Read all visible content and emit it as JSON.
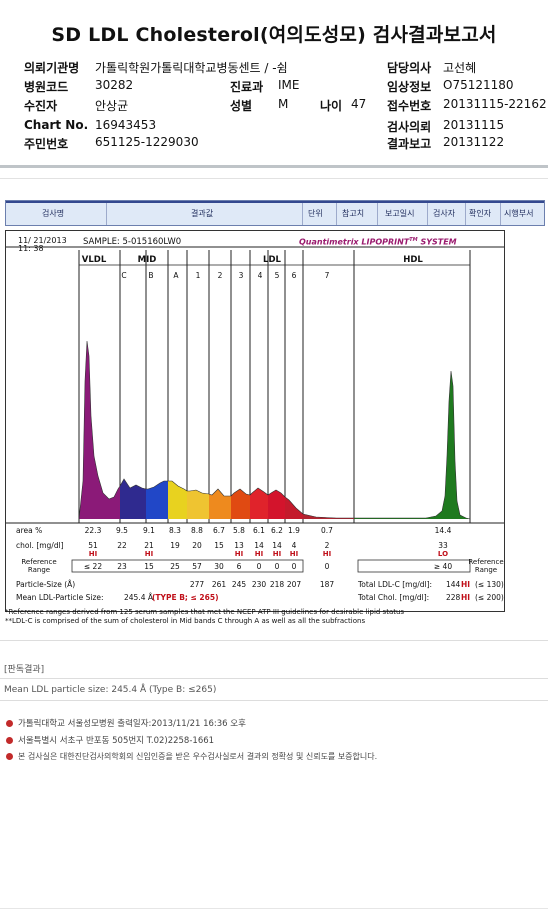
{
  "title": "SD LDL Cholesterol(여의도성모) 검사결과보고서",
  "header_rows": [
    [
      {
        "l": "의뢰기관명",
        "v": "가톨릭학원가톨릭대학교병동센트 / -쉼"
      },
      {
        "l": "담당의사",
        "v": "고선혜"
      }
    ],
    [
      {
        "l": "병원코드",
        "v": "30282"
      },
      {
        "l": "진료과",
        "v": "IME"
      },
      {
        "l": "임상정보",
        "v": "O75121180"
      }
    ],
    [
      {
        "l": "수진자",
        "v": "안상균"
      },
      {
        "l": "성별",
        "v": "M"
      },
      {
        "l": "나이",
        "v": "47"
      },
      {
        "l": "접수번호",
        "v": "20131115-22162"
      }
    ],
    [
      {
        "l": "Chart No.",
        "v": "16943453"
      },
      {
        "l": "검사의뢰",
        "v": "20131115"
      }
    ],
    [
      {
        "l": "주민번호",
        "v": "651125-1229030"
      },
      {
        "l": "결과보고",
        "v": "20131122"
      }
    ]
  ],
  "table_header": [
    "검사명",
    "결과값",
    "단위",
    "참고치",
    "보고일시",
    "검사자",
    "확인자",
    "시행부서"
  ],
  "chart": {
    "date": "11/ 21/2013",
    "time": "11: 38",
    "sample": "SAMPLE:   5-015160LW0",
    "brand": "Quantimetrix LIPOPRINT",
    "brand_tm": "TM",
    "brand_suffix": " SYSTEM",
    "group_labels": {
      "vldl": "VLDL",
      "mid": "MID",
      "ldl": "LDL",
      "hdl": "HDL"
    },
    "band_labels": [
      "C",
      "B",
      "A",
      "1",
      "2",
      "3",
      "4",
      "5",
      "6",
      "7"
    ],
    "row_labels": {
      "area": "area %",
      "chol": "chol. [mg/dl]",
      "ref": "Reference Range",
      "size": "Particle-Size (Å)",
      "mean": "Mean LDL-Particle Size:",
      "ref_right": "Reference Range"
    },
    "columns": [
      "VLDL",
      "C",
      "B",
      "A",
      "1",
      "2",
      "3",
      "4",
      "5",
      "6",
      "7",
      "HDL"
    ],
    "area": [
      22.3,
      9.5,
      9.1,
      8.3,
      8.8,
      6.7,
      5.8,
      6.1,
      6.2,
      1.9,
      0.7,
      14.4
    ],
    "chol": [
      51,
      22,
      21,
      19,
      20,
      15,
      13,
      14,
      14,
      4,
      2,
      33
    ],
    "chol_flags": [
      "HI",
      "",
      "HI",
      "",
      "",
      "",
      "HI",
      "HI",
      "HI",
      "HI",
      "HI",
      "LO"
    ],
    "ref": [
      "≤ 22",
      "23",
      "15",
      "25",
      "57",
      "30",
      "6",
      "0",
      "0",
      "0",
      "0",
      "≥ 40"
    ],
    "size": [
      "",
      "",
      "",
      "",
      "277",
      "261",
      "245",
      "230",
      "218",
      "207",
      "187",
      ""
    ],
    "mean_value": "245.4 Å",
    "mean_type": "(TYPE B; ≤ 265)",
    "total_ldl": {
      "label": "Total LDL-C [mg/dl]:",
      "value": "144",
      "flag": "HI",
      "ref": "(≤ 130)"
    },
    "total_chol": {
      "label": "Total Chol. [mg/dl]:",
      "value": "228",
      "flag": "HI",
      "ref": "(≤ 200)"
    }
  },
  "notes": [
    "*Reference ranges derived from 125 serum samples that met the NCEP ATP III guidelines for desirable lipid status",
    "**LDL-C is comprised of the sum of cholesterol in Mid bands C through A as well as all the subfractions"
  ],
  "section_label": "[판독결과]",
  "interpretation": "Mean LDL particle size: 245.4 Å (Type B: ≤265)",
  "footer": [
    "가톨릭대학교 서울성모병원       출력일자:2013/11/21 16:36 오후",
    "서울특별시 서초구 반포동 505번지 T.02)2258-1661",
    "본 검사실은 대한진단검사의학회의 신임인증을 받은 우수검사실로서 결과의 정확성 및 신뢰도를 보증합니다."
  ],
  "colors": {
    "vldl": "#8a1d7a",
    "mid": "#3a2a9a",
    "hdl": "#1e7d1e",
    "flag": "#c0101a",
    "brand": "#9a1a6e"
  }
}
